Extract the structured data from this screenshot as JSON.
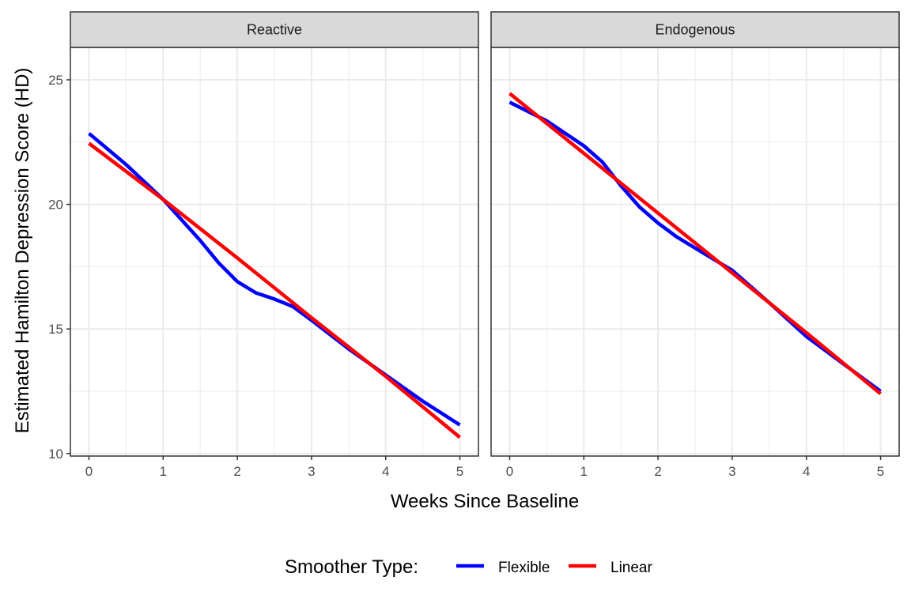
{
  "chart_data": {
    "type": "line",
    "title": "",
    "xlabel": "Weeks Since Baseline",
    "ylabel": "Estimated Hamilton Depression Score (HD)",
    "xlim": [
      -0.25,
      5.25
    ],
    "ylim": [
      9.9,
      26.3
    ],
    "x_ticks": [
      0,
      1,
      2,
      3,
      4,
      5
    ],
    "y_ticks": [
      10,
      15,
      20,
      25
    ],
    "grid": true,
    "legend": {
      "title": "Smoother Type:",
      "position": "bottom",
      "entries": [
        {
          "name": "Flexible",
          "color": "#0000ff"
        },
        {
          "name": "Linear",
          "color": "#ff0000"
        }
      ]
    },
    "panels": [
      {
        "strip": "Reactive",
        "series": [
          {
            "name": "Flexible",
            "color": "#0000ff",
            "x": [
              0,
              0.5,
              1,
              1.5,
              1.75,
              2,
              2.25,
              2.5,
              2.75,
              3,
              3.5,
              4,
              4.5,
              5
            ],
            "y": [
              22.85,
              21.6,
              20.2,
              18.55,
              17.65,
              16.9,
              16.45,
              16.2,
              15.9,
              15.35,
              14.2,
              13.15,
              12.1,
              11.15
            ]
          },
          {
            "name": "Linear",
            "color": "#ff0000",
            "x": [
              0,
              1,
              2,
              3,
              4,
              5
            ],
            "y": [
              22.45,
              20.2,
              17.85,
              15.45,
              13.1,
              10.65
            ]
          }
        ]
      },
      {
        "strip": "Endogenous",
        "series": [
          {
            "name": "Flexible",
            "color": "#0000ff",
            "x": [
              0,
              0.5,
              1,
              1.25,
              1.5,
              1.75,
              2,
              2.25,
              2.5,
              3,
              3.5,
              4,
              4.5,
              5
            ],
            "y": [
              24.1,
              23.35,
              22.35,
              21.7,
              20.75,
              19.9,
              19.25,
              18.7,
              18.25,
              17.35,
              16.05,
              14.7,
              13.6,
              12.5
            ]
          },
          {
            "name": "Linear",
            "color": "#ff0000",
            "x": [
              0,
              1,
              2,
              3,
              4,
              5
            ],
            "y": [
              24.45,
              22.05,
              19.65,
              17.25,
              14.85,
              12.4
            ]
          }
        ]
      }
    ]
  }
}
